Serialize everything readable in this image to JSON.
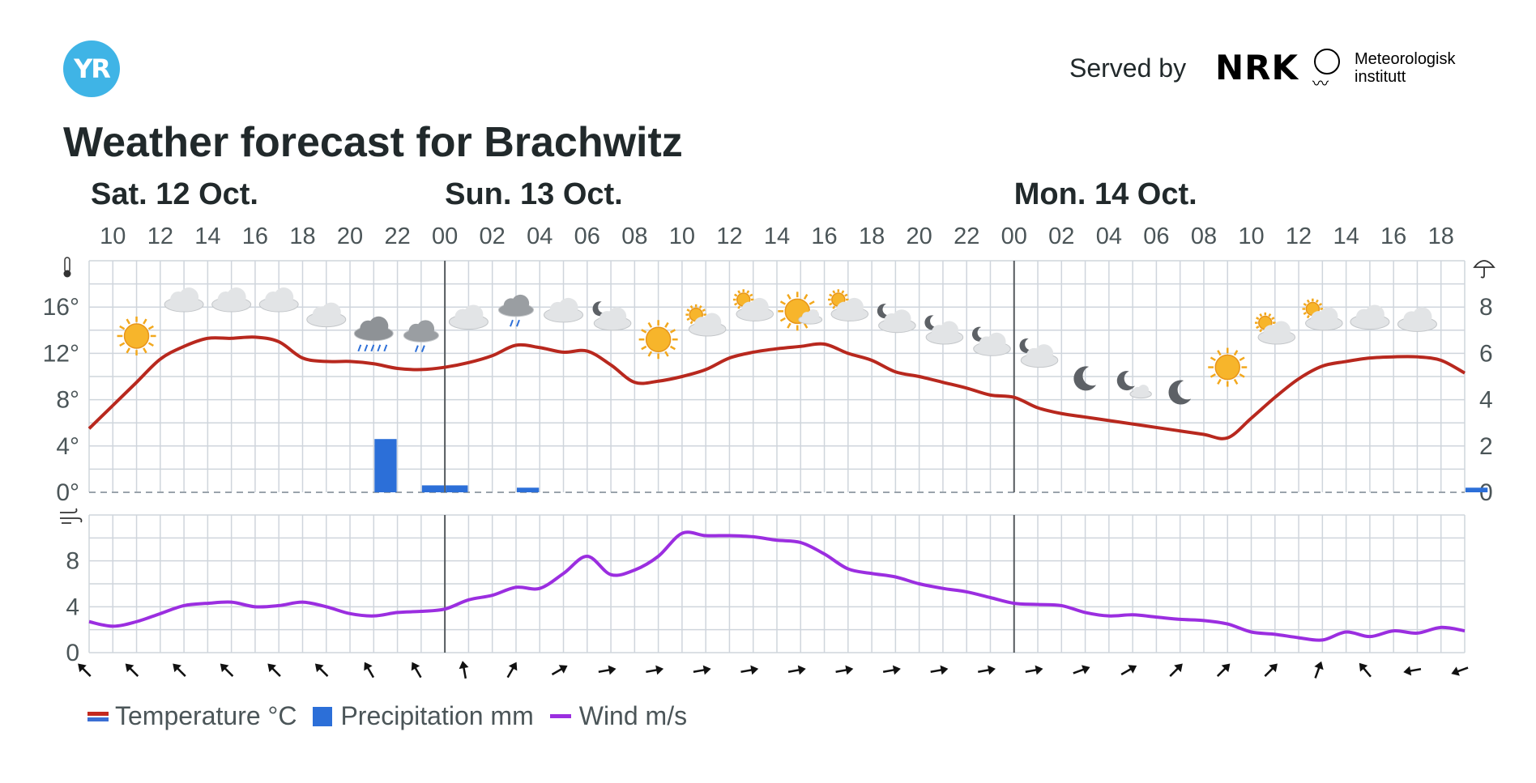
{
  "header": {
    "logo_text": "YR",
    "served_by": "Served by",
    "nrk_logo": "NRK",
    "met_line1": "Meteorologisk",
    "met_line2": "institutt",
    "title": "Weather forecast for Brachwitz"
  },
  "legend": {
    "temperature": "Temperature °C",
    "precipitation": "Precipitation mm",
    "wind": "Wind m/s"
  },
  "colors": {
    "temperature": "#b8281e",
    "precipitation": "#2c6fd8",
    "wind": "#9b2ee0",
    "grid": "#cfd5dc",
    "day_separator": "#555a5e",
    "axis_text": "#4b5558"
  },
  "chart_data": [
    {
      "type": "line",
      "title": "",
      "days": [
        {
          "label": "Sat. 12 Oct.",
          "start_hour_index": 0
        },
        {
          "label": "Sun. 13 Oct.",
          "start_hour_index": 15
        },
        {
          "label": "Mon. 14 Oct.",
          "start_hour_index": 39
        }
      ],
      "x_start": "Sat. 12 Oct. 09:00",
      "x_end": "Mon. 14 Oct. 19:00",
      "hour_ticks": [
        "10",
        "12",
        "14",
        "16",
        "18",
        "20",
        "22",
        "00",
        "02",
        "04",
        "06",
        "08",
        "10",
        "12",
        "14",
        "16",
        "18",
        "20",
        "22",
        "00",
        "02",
        "04",
        "06",
        "08",
        "10",
        "12",
        "14",
        "16",
        "18"
      ],
      "y_left_ticks": [
        "0°",
        "4°",
        "8°",
        "12°",
        "16°"
      ],
      "y_right_ticks": [
        "0",
        "2",
        "4",
        "6",
        "8"
      ],
      "ylim_left": [
        0,
        20
      ],
      "ylim_right": [
        0,
        10
      ],
      "temp_icon": "thermometer-icon",
      "precip_icon": "umbrella-icon",
      "series": [
        {
          "name": "Temperature °C",
          "x_hours": [
            9,
            10,
            11,
            12,
            13,
            14,
            15,
            16,
            17,
            18,
            19,
            20,
            21,
            22,
            23,
            24,
            25,
            26,
            27,
            28,
            29,
            30,
            31,
            32,
            33,
            34,
            35,
            36,
            37,
            38,
            39,
            40,
            41,
            42,
            43,
            44,
            45,
            46,
            47,
            48,
            49,
            50,
            51,
            52,
            53,
            54,
            55,
            56,
            57,
            58,
            59,
            60,
            61,
            62,
            63,
            64,
            65,
            66,
            67
          ],
          "values": [
            5.5,
            7.5,
            9.5,
            11.5,
            12.6,
            13.3,
            13.3,
            13.4,
            13.0,
            11.6,
            11.3,
            11.3,
            11.1,
            10.7,
            10.6,
            10.8,
            11.2,
            11.8,
            12.7,
            12.5,
            12.1,
            12.2,
            11.0,
            9.5,
            9.6,
            10.0,
            10.6,
            11.6,
            12.1,
            12.4,
            12.6,
            12.8,
            12.0,
            11.4,
            10.4,
            10.0,
            9.5,
            9.0,
            8.4,
            8.2,
            7.3,
            6.8,
            6.5,
            6.2,
            5.9,
            5.6,
            5.3,
            5.0,
            4.7,
            6.4,
            8.2,
            9.8,
            10.9,
            11.3,
            11.6,
            11.7,
            11.7,
            11.4,
            10.3
          ]
        },
        {
          "name": "Precipitation mm",
          "type": "bar",
          "bars": [
            {
              "hour": 21,
              "value": 2.3
            },
            {
              "hour": 23,
              "value": 0.3
            },
            {
              "hour": 24,
              "value": 0.3
            },
            {
              "hour": 27,
              "value": 0.2
            },
            {
              "hour": 67,
              "value": 0.2
            }
          ]
        }
      ],
      "weather_symbols": [
        {
          "hour": 11,
          "icon": "clear-sky-sun-icon",
          "temp": 13.5
        },
        {
          "hour": 13,
          "icon": "cloudy-icon",
          "temp": 16.5
        },
        {
          "hour": 15,
          "icon": "cloudy-icon",
          "temp": 16.5
        },
        {
          "hour": 17,
          "icon": "cloudy-icon",
          "temp": 16.5
        },
        {
          "hour": 19,
          "icon": "cloudy-icon",
          "temp": 15.2
        },
        {
          "hour": 21,
          "icon": "rain-cloud-icon",
          "temp": 14.0
        },
        {
          "hour": 23,
          "icon": "light-rain-cloud-icon",
          "temp": 13.8
        },
        {
          "hour": 25,
          "icon": "cloudy-icon",
          "temp": 15.0
        },
        {
          "hour": 27,
          "icon": "light-rain-cloud-icon",
          "temp": 16.0
        },
        {
          "hour": 29,
          "icon": "cloudy-icon",
          "temp": 15.6
        },
        {
          "hour": 31,
          "icon": "partly-cloudy-night-icon",
          "temp": 15.0
        },
        {
          "hour": 33,
          "icon": "clear-sky-sun-icon",
          "temp": 13.2
        },
        {
          "hour": 35,
          "icon": "partly-cloudy-sun-icon",
          "temp": 14.5
        },
        {
          "hour": 37,
          "icon": "partly-cloudy-sun-icon",
          "temp": 15.8
        },
        {
          "hour": 39,
          "icon": "fair-sun-icon",
          "temp": 15.5
        },
        {
          "hour": 41,
          "icon": "partly-cloudy-sun-icon",
          "temp": 15.8
        },
        {
          "hour": 43,
          "icon": "partly-cloudy-night-icon",
          "temp": 14.8
        },
        {
          "hour": 45,
          "icon": "partly-cloudy-night-icon",
          "temp": 13.8
        },
        {
          "hour": 47,
          "icon": "partly-cloudy-night-icon",
          "temp": 12.8
        },
        {
          "hour": 49,
          "icon": "partly-cloudy-night-icon",
          "temp": 11.8
        },
        {
          "hour": 51,
          "icon": "clear-night-moon-icon",
          "temp": 9.8
        },
        {
          "hour": 53,
          "icon": "fair-night-icon",
          "temp": 9.2
        },
        {
          "hour": 55,
          "icon": "clear-night-moon-icon",
          "temp": 8.6
        },
        {
          "hour": 57,
          "icon": "clear-sky-sun-icon",
          "temp": 10.8
        },
        {
          "hour": 59,
          "icon": "partly-cloudy-sun-icon",
          "temp": 13.8
        },
        {
          "hour": 61,
          "icon": "partly-cloudy-sun-icon",
          "temp": 15.0
        },
        {
          "hour": 63,
          "icon": "cloudy-icon",
          "temp": 15.0
        },
        {
          "hour": 65,
          "icon": "cloudy-icon",
          "temp": 14.8
        }
      ]
    },
    {
      "type": "line",
      "title": "",
      "y_ticks": [
        "0",
        "4",
        "8"
      ],
      "ylim": [
        0,
        12
      ],
      "wind_icon": "wind-icon",
      "series": [
        {
          "name": "Wind m/s",
          "x_hours": [
            9,
            10,
            11,
            12,
            13,
            14,
            15,
            16,
            17,
            18,
            19,
            20,
            21,
            22,
            23,
            24,
            25,
            26,
            27,
            28,
            29,
            30,
            31,
            32,
            33,
            34,
            35,
            36,
            37,
            38,
            39,
            40,
            41,
            42,
            43,
            44,
            45,
            46,
            47,
            48,
            49,
            50,
            51,
            52,
            53,
            54,
            55,
            56,
            57,
            58,
            59,
            60,
            61,
            62,
            63,
            64,
            65,
            66,
            67
          ],
          "values": [
            2.7,
            2.3,
            2.7,
            3.4,
            4.1,
            4.3,
            4.4,
            4.0,
            4.1,
            4.4,
            4.0,
            3.4,
            3.2,
            3.5,
            3.6,
            3.8,
            4.6,
            5.0,
            5.7,
            5.6,
            6.9,
            8.4,
            6.8,
            7.2,
            8.4,
            10.4,
            10.2,
            10.2,
            10.1,
            9.8,
            9.6,
            8.6,
            7.3,
            6.9,
            6.6,
            6.0,
            5.6,
            5.3,
            4.8,
            4.3,
            4.2,
            4.1,
            3.5,
            3.2,
            3.3,
            3.1,
            2.9,
            2.8,
            2.5,
            1.8,
            1.6,
            1.3,
            1.1,
            1.8,
            1.4,
            1.9,
            1.7,
            2.2,
            1.9
          ]
        }
      ],
      "wind_direction_arrows_deg": [
        315,
        315,
        315,
        315,
        315,
        315,
        330,
        330,
        350,
        30,
        60,
        80,
        80,
        80,
        80,
        80,
        80,
        80,
        80,
        80,
        80,
        70,
        60,
        45,
        45,
        45,
        20,
        320,
        260,
        250
      ]
    }
  ]
}
